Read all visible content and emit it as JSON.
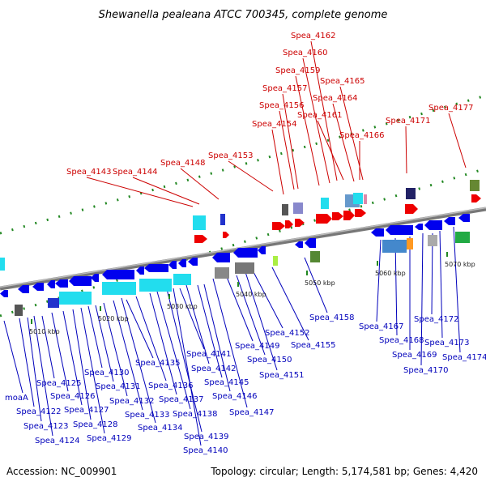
{
  "title": "Shewanella pealeana ATCC 700345, complete genome",
  "footer": {
    "accession": "Accession: NC_009901",
    "summary": "Topology: circular; Length: 5,174,581 bp; Genes: 4,420"
  },
  "colors": {
    "forward_label": "#cc0000",
    "reverse_label": "#0000bb",
    "forward_arrow": "#ee0000",
    "reverse_arrow": "#0000ee",
    "backbone": "#808080",
    "tick": "#228822"
  },
  "kbp_ticks": [
    "5010 kbp",
    "5020 kbp",
    "5030 kbp",
    "5040 kbp",
    "5050 kbp",
    "5060 kbp",
    "5070 kbp"
  ],
  "forward_labels": [
    "Spea_4143",
    "Spea_4144",
    "Spea_4148",
    "Spea_4153",
    "Spea_4154",
    "Spea_4156",
    "Spea_4157",
    "Spea_4159",
    "Spea_4160",
    "Spea_4162",
    "Spea_4161",
    "Spea_4164",
    "Spea_4165",
    "Spea_4166",
    "Spea_4171",
    "Spea_4177"
  ],
  "reverse_labels": [
    "moaA",
    "Spea_4122",
    "Spea_4123",
    "Spea_4124",
    "Spea_4125",
    "Spea_4126",
    "Spea_4127",
    "Spea_4128",
    "Spea_4129",
    "Spea_4130",
    "Spea_4131",
    "Spea_4132",
    "Spea_4133",
    "Spea_4134",
    "Spea_4135",
    "Spea_4136",
    "Spea_4137",
    "Spea_4138",
    "Spea_4139",
    "Spea_4140",
    "Spea_4141",
    "Spea_4142",
    "Spea_4145",
    "Spea_4146",
    "Spea_4147",
    "Spea_4149",
    "Spea_4150",
    "Spea_4151",
    "Spea_4152",
    "Spea_4155",
    "Spea_4158",
    "Spea_4167",
    "Spea_4168",
    "Spea_4169",
    "Spea_4170",
    "Spea_4172",
    "Spea_4173",
    "Spea_4174"
  ]
}
